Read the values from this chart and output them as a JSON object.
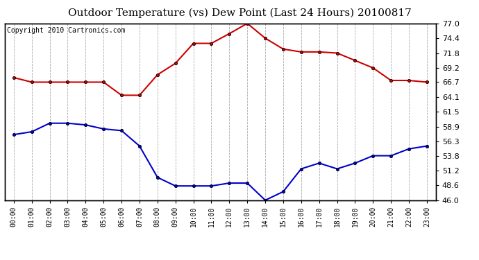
{
  "title": "Outdoor Temperature (vs) Dew Point (Last 24 Hours) 20100817",
  "copyright": "Copyright 2010 Cartronics.com",
  "x_labels": [
    "00:00",
    "01:00",
    "02:00",
    "03:00",
    "04:00",
    "05:00",
    "06:00",
    "07:00",
    "08:00",
    "09:00",
    "10:00",
    "11:00",
    "12:00",
    "13:00",
    "14:00",
    "15:00",
    "16:00",
    "17:00",
    "18:00",
    "19:00",
    "20:00",
    "21:00",
    "22:00",
    "23:00"
  ],
  "temp_data": [
    67.5,
    66.7,
    66.7,
    66.7,
    66.7,
    66.7,
    64.4,
    64.4,
    68.0,
    70.0,
    73.5,
    73.5,
    75.2,
    77.0,
    74.4,
    72.5,
    72.0,
    72.0,
    71.8,
    70.5,
    69.2,
    67.0,
    67.0,
    66.7
  ],
  "dew_data": [
    57.5,
    58.0,
    59.5,
    59.5,
    59.2,
    58.5,
    58.2,
    55.5,
    50.0,
    48.5,
    48.5,
    48.5,
    49.0,
    49.0,
    46.0,
    47.5,
    51.5,
    52.5,
    51.5,
    52.5,
    53.8,
    53.8,
    55.0,
    55.5
  ],
  "temp_color": "#cc0000",
  "dew_color": "#0000cc",
  "y_min": 46.0,
  "y_max": 77.0,
  "y_ticks": [
    46.0,
    48.6,
    51.2,
    53.8,
    56.3,
    58.9,
    61.5,
    64.1,
    66.7,
    69.2,
    71.8,
    74.4,
    77.0
  ],
  "grid_color": "#aaaaaa",
  "bg_color": "#ffffff",
  "plot_bg_color": "#ffffff",
  "title_fontsize": 11,
  "copyright_fontsize": 7,
  "marker": "o",
  "marker_size": 3,
  "line_width": 1.5
}
